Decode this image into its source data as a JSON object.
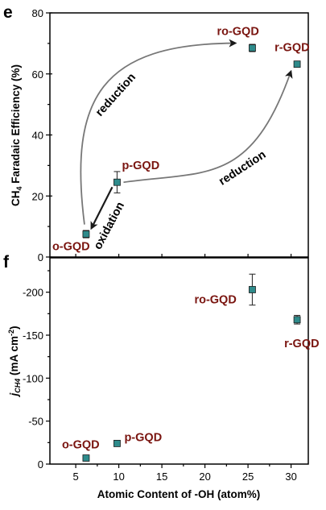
{
  "chart_data": [
    {
      "type": "scatter",
      "panel_label": "e",
      "ylabel_prefix": "CH",
      "ylabel_sub": "4",
      "ylabel_rest": " Faradaic Efficiency (%)",
      "xlim": [
        2,
        32
      ],
      "ylim": [
        0,
        80
      ],
      "yticks": [
        "0",
        "20",
        "40",
        "60",
        "80"
      ],
      "marker_color": "#2e8b8b",
      "label_color": "#7a1510",
      "points": [
        {
          "label": "o-GQD",
          "x": 6.2,
          "y": 7.5,
          "yerr": 1.2
        },
        {
          "label": "p-GQD",
          "x": 9.8,
          "y": 24.5,
          "yerr": 3.5
        },
        {
          "label": "ro-GQD",
          "x": 25.5,
          "y": 68.5,
          "yerr": 1.2
        },
        {
          "label": "r-GQD",
          "x": 30.7,
          "y": 63.2,
          "yerr": 0.8
        }
      ],
      "annotations": [
        {
          "text": "reduction",
          "from": "o-GQD",
          "to": "ro-GQD"
        },
        {
          "text": "reduction",
          "from": "p-GQD",
          "to": "r-GQD"
        },
        {
          "text": "oxidation",
          "from": "p-GQD",
          "to": "o-GQD"
        }
      ]
    },
    {
      "type": "scatter",
      "panel_label": "f",
      "ylabel_prefix": "j",
      "ylabel_sub": "CH4",
      "ylabel_rest": " (mA cm",
      "ylabel_sup": "-2",
      "ylabel_end": ")",
      "xlabel": "Atomic Content of -OH (atom%)",
      "xlim": [
        2,
        32
      ],
      "ylim": [
        0,
        -240
      ],
      "xticks": [
        "5",
        "10",
        "15",
        "20",
        "25",
        "30"
      ],
      "yticks": [
        "0",
        "-50",
        "-100",
        "-150",
        "-200"
      ],
      "marker_color": "#2e8b8b",
      "label_color": "#7a1510",
      "points": [
        {
          "label": "o-GQD",
          "x": 6.2,
          "y": -7,
          "yerr": 2
        },
        {
          "label": "p-GQD",
          "x": 9.8,
          "y": -24,
          "yerr": 3
        },
        {
          "label": "ro-GQD",
          "x": 25.5,
          "y": -203,
          "yerr": 18
        },
        {
          "label": "r-GQD",
          "x": 30.7,
          "y": -168,
          "yerr": 5
        }
      ]
    }
  ]
}
